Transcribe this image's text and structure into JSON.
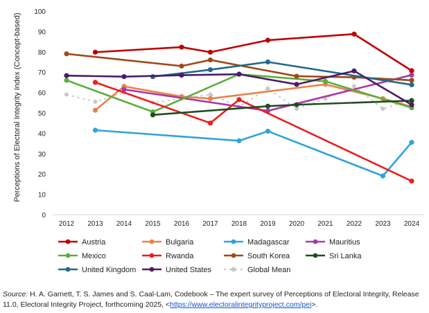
{
  "chart_data": {
    "type": "line",
    "title": "",
    "xlabel": "",
    "ylabel": "Perceptions of Electoral Integrity Index (Concept-based)",
    "x": [
      2012,
      2013,
      2014,
      2015,
      2016,
      2017,
      2018,
      2019,
      2020,
      2021,
      2022,
      2023,
      2024
    ],
    "y_ticks": [
      0,
      10,
      20,
      30,
      40,
      50,
      60,
      70,
      80,
      90,
      100
    ],
    "ylim": [
      0,
      100
    ],
    "grid": false,
    "legend_position": "bottom",
    "series": [
      {
        "name": "Austria",
        "color": "#c00000",
        "dashed": false,
        "points": [
          [
            2013,
            79.8
          ],
          [
            2016,
            82.3
          ],
          [
            2017,
            79.8
          ],
          [
            2019,
            85.7
          ],
          [
            2022,
            88.7
          ],
          [
            2024,
            70.7
          ]
        ]
      },
      {
        "name": "Bulgaria",
        "color": "#e9824a",
        "dashed": false,
        "points": [
          [
            2013,
            51.3
          ],
          [
            2014,
            63.0
          ],
          [
            2016,
            58.0
          ],
          [
            2017,
            57.0
          ],
          [
            2021,
            64.0
          ],
          [
            2023,
            57.0
          ],
          [
            2024,
            53.0
          ]
        ]
      },
      {
        "name": "Madagascar",
        "color": "#2fa4d9",
        "dashed": false,
        "points": [
          [
            2013,
            41.5
          ],
          [
            2018,
            36.3
          ],
          [
            2019,
            41.0
          ],
          [
            2023,
            19.0
          ],
          [
            2024,
            35.5
          ]
        ]
      },
      {
        "name": "Mauritius",
        "color": "#a83aa8",
        "dashed": false,
        "points": [
          [
            2014,
            61.5
          ],
          [
            2019,
            51.0
          ],
          [
            2024,
            68.6
          ]
        ]
      },
      {
        "name": "Mexico",
        "color": "#5cae3b",
        "dashed": false,
        "points": [
          [
            2012,
            66.0
          ],
          [
            2015,
            50.5
          ],
          [
            2018,
            69.0
          ],
          [
            2021,
            65.5
          ],
          [
            2024,
            52.5
          ]
        ]
      },
      {
        "name": "Rwanda",
        "color": "#ee1c1c",
        "dashed": false,
        "points": [
          [
            2013,
            65.0
          ],
          [
            2017,
            45.0
          ],
          [
            2018,
            56.5
          ],
          [
            2024,
            16.5
          ]
        ]
      },
      {
        "name": "South Korea",
        "color": "#9c4a1a",
        "dashed": false,
        "points": [
          [
            2012,
            79.0
          ],
          [
            2016,
            73.0
          ],
          [
            2017,
            76.0
          ],
          [
            2020,
            68.0
          ],
          [
            2022,
            67.5
          ],
          [
            2024,
            66.0
          ]
        ]
      },
      {
        "name": "Sri Lanka",
        "color": "#1f4d1f",
        "dashed": false,
        "points": [
          [
            2015,
            49.0
          ],
          [
            2019,
            53.3
          ],
          [
            2020,
            54.0
          ],
          [
            2024,
            56.0
          ]
        ]
      },
      {
        "name": "United Kingdom",
        "color": "#1f6a8a",
        "dashed": false,
        "points": [
          [
            2015,
            67.8
          ],
          [
            2017,
            71.2
          ],
          [
            2019,
            75.0
          ],
          [
            2024,
            63.8
          ]
        ]
      },
      {
        "name": "United States",
        "color": "#4c1a6a",
        "dashed": false,
        "points": [
          [
            2012,
            68.3
          ],
          [
            2014,
            67.8
          ],
          [
            2016,
            68.5
          ],
          [
            2018,
            69.0
          ],
          [
            2020,
            64.0
          ],
          [
            2022,
            70.6
          ],
          [
            2024,
            54.0
          ]
        ]
      },
      {
        "name": "Global Mean",
        "color": "#c8c8c8",
        "dashed": true,
        "points": [
          [
            2012,
            59.0
          ],
          [
            2013,
            55.5
          ],
          [
            2014,
            60.0
          ],
          [
            2015,
            55.0
          ],
          [
            2016,
            57.0
          ],
          [
            2017,
            59.0
          ],
          [
            2018,
            53.0
          ],
          [
            2019,
            62.0
          ],
          [
            2020,
            52.0
          ],
          [
            2021,
            57.0
          ],
          [
            2022,
            63.0
          ],
          [
            2023,
            52.0
          ],
          [
            2024,
            56.5
          ]
        ]
      }
    ]
  },
  "source_note": {
    "label": "Source:",
    "text": " H. A. Garnett, T. S. James and S. Caal-Lam, Codebook – The expert survey of Perceptions of Electoral Integrity, Release 11.0, Electoral Integrity Project, forthcoming 2025, <",
    "link": "https://www.electoralintegrityproject.com/pei",
    "suffix": ">."
  }
}
